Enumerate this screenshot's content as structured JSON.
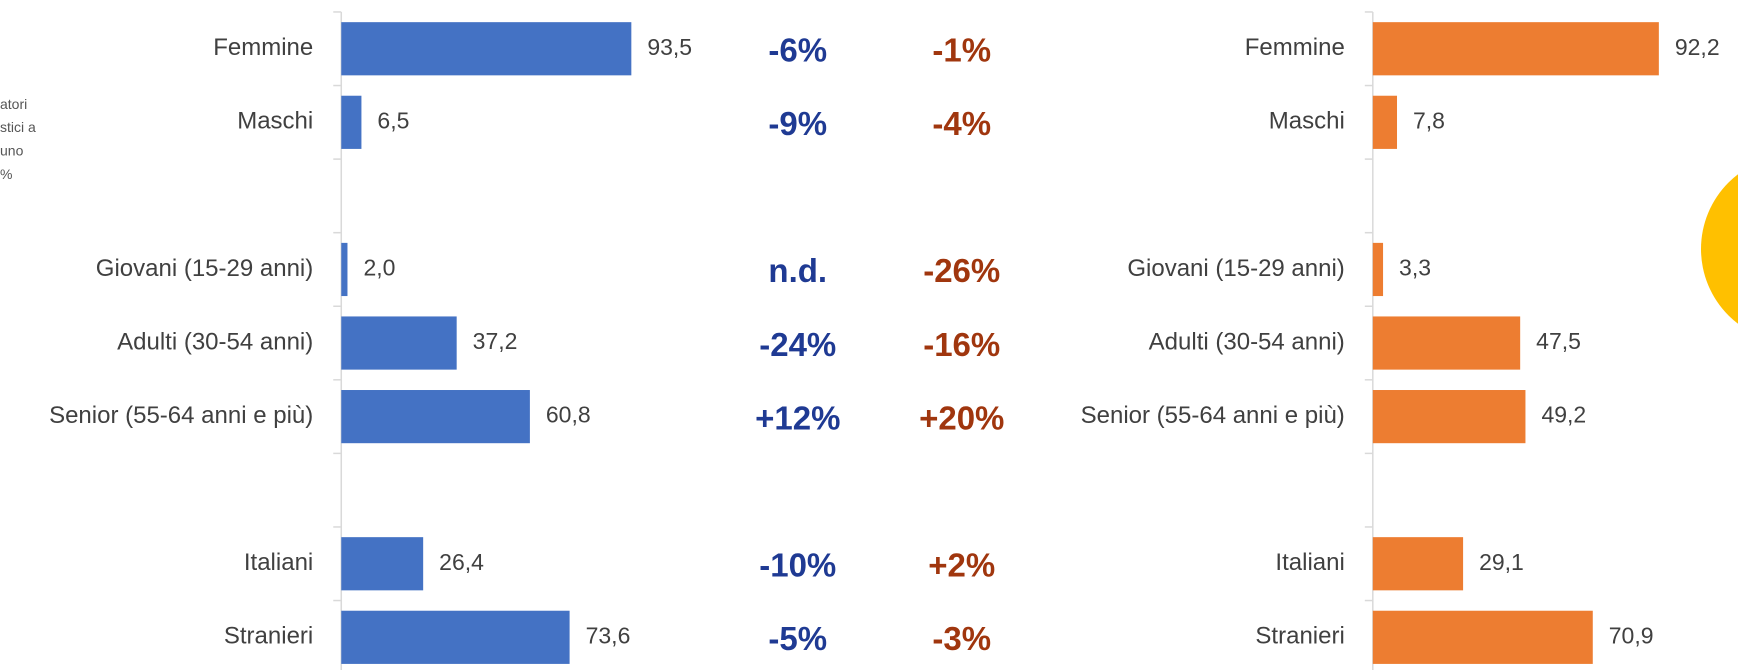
{
  "chart_data": [
    {
      "type": "bar",
      "orientation": "horizontal",
      "color": "#4472c4",
      "xlim": [
        0,
        100
      ],
      "categories": [
        "Femmine",
        "Maschi",
        null,
        "Giovani (15-29 anni)",
        "Adulti (30-54 anni)",
        "Senior (55-64 anni e più)",
        null,
        "Italiani",
        "Stranieri"
      ],
      "values": [
        93.5,
        6.5,
        null,
        2.0,
        37.2,
        60.8,
        null,
        26.4,
        73.6
      ],
      "value_labels": [
        "93,5",
        "6,5",
        null,
        "2,0",
        "37,2",
        "60,8",
        null,
        "26,4",
        "73,6"
      ]
    },
    {
      "type": "bar",
      "orientation": "horizontal",
      "color": "#ed7d31",
      "xlim": [
        0,
        100
      ],
      "categories": [
        "Femmine",
        "Maschi",
        null,
        "Giovani (15-29 anni)",
        "Adulti (30-54 anni)",
        "Senior (55-64 anni e più)",
        null,
        "Italiani",
        "Stranieri"
      ],
      "values": [
        92.2,
        7.8,
        null,
        3.3,
        47.5,
        49.2,
        null,
        29.1,
        70.9
      ],
      "value_labels": [
        "92,2",
        "7,8",
        null,
        "3,3",
        "47,5",
        "49,2",
        null,
        "29,1",
        "70,9"
      ]
    }
  ],
  "change_columns": [
    {
      "color": "#1f3a93",
      "values": [
        "-6%",
        "-9%",
        null,
        "n.d.",
        "-24%",
        "+12%",
        null,
        "-10%",
        "-5%"
      ]
    },
    {
      "color": "#a0360e",
      "values": [
        "-1%",
        "-4%",
        null,
        "-26%",
        "-16%",
        "+20%",
        null,
        "+2%",
        "-3%"
      ]
    }
  ],
  "side_note": [
    "atori",
    "stici a",
    "uno",
    "%"
  ]
}
